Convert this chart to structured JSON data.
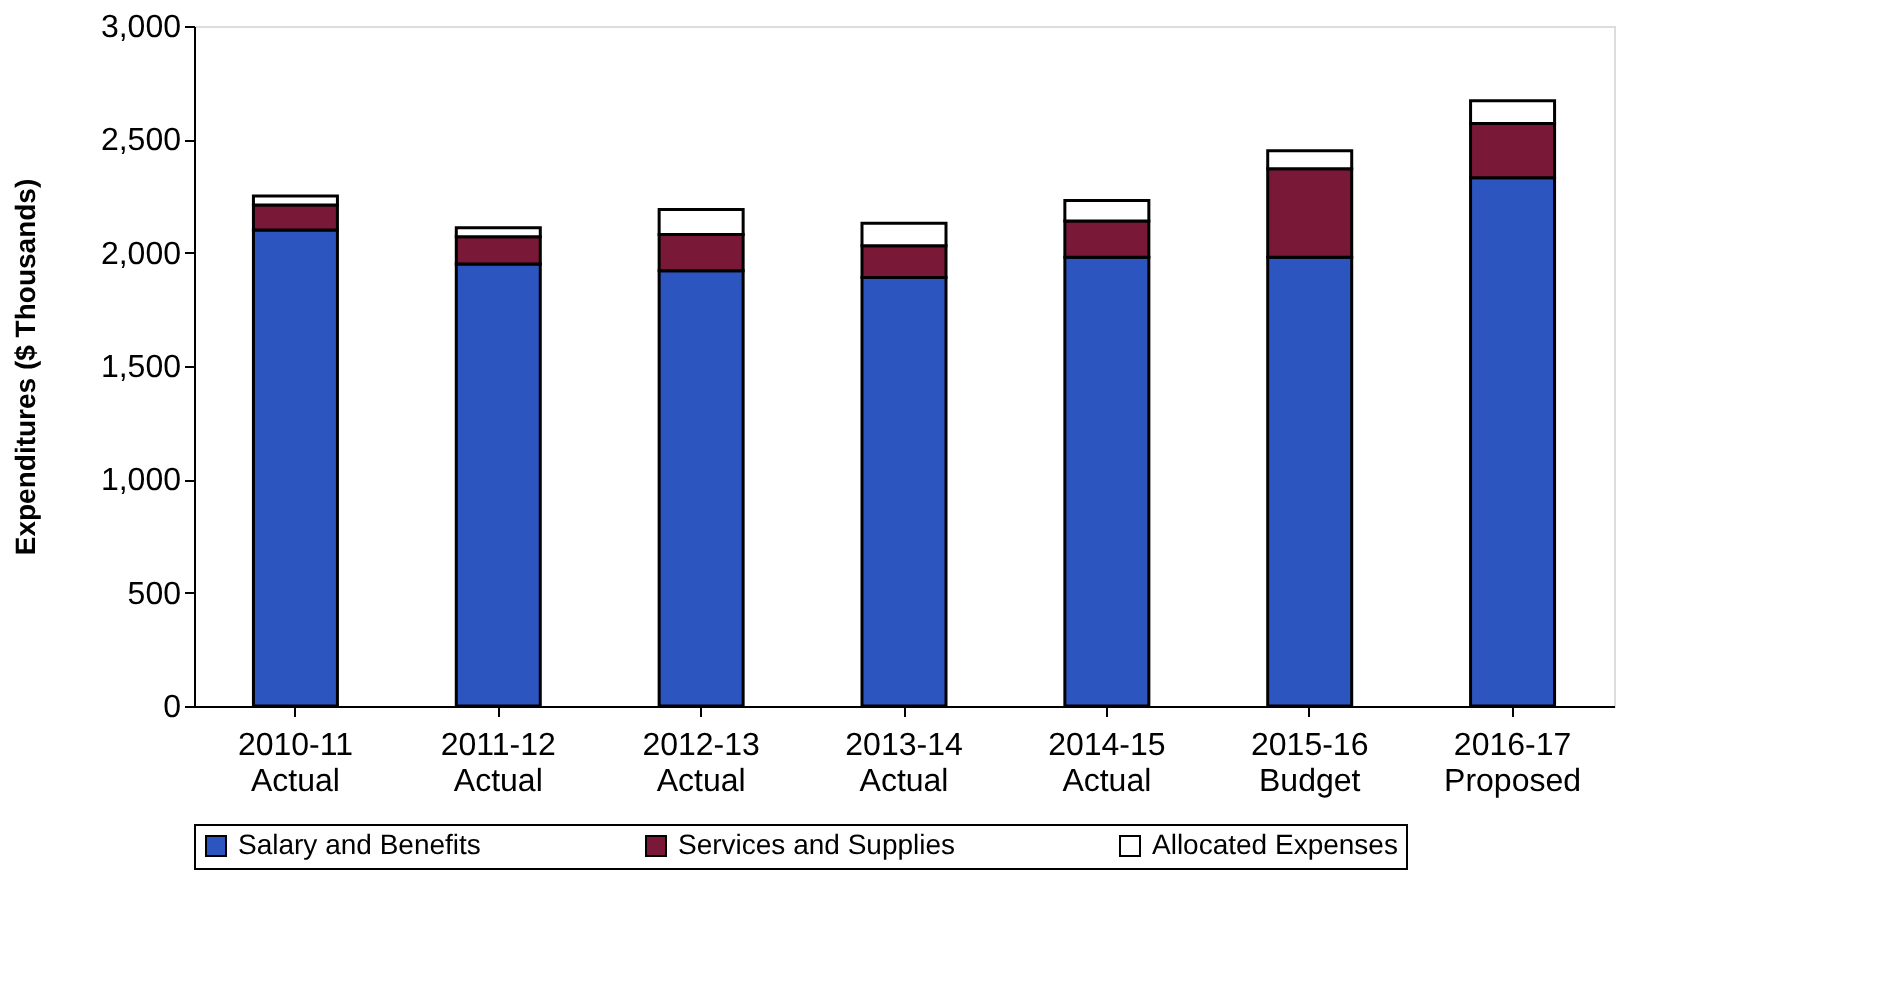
{
  "chart_data": {
    "type": "bar",
    "stacked": true,
    "ylabel": "Expenditures ($ Thousands)",
    "categories": [
      "2010-11\nActual",
      "2011-12\nActual",
      "2012-13\nActual",
      "2013-14\nActual",
      "2014-15\nActual",
      "2015-16\nBudget",
      "2016-17\nProposed"
    ],
    "series": [
      {
        "name": "Salary and Benefits",
        "color": "#2d55c0",
        "values": [
          2100,
          1950,
          1920,
          1890,
          1980,
          1980,
          2330
        ]
      },
      {
        "name": "Services and Supplies",
        "color": "#7a1838",
        "values": [
          110,
          120,
          160,
          140,
          160,
          390,
          240
        ]
      },
      {
        "name": "Allocated Expenses",
        "color": "#ffffff",
        "values": [
          40,
          40,
          110,
          100,
          90,
          80,
          100
        ]
      }
    ],
    "ylim": [
      0,
      3000
    ],
    "yticks": [
      0,
      {
        "value": 500,
        "label": "500"
      },
      {
        "value": 1000,
        "label": "1,000"
      },
      {
        "value": 1500,
        "label": "1,500"
      },
      {
        "value": 2000,
        "label": "2,000"
      },
      {
        "value": 2500,
        "label": "2,500"
      },
      {
        "value": 3000,
        "label": "3,000"
      }
    ],
    "grid": false,
    "legend": "bottom"
  }
}
